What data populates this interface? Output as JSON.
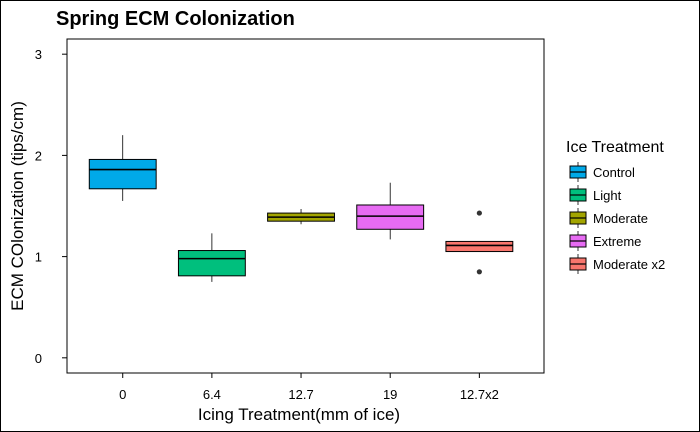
{
  "chart_data": {
    "type": "box",
    "title": "Spring ECM Colonization",
    "xlabel": "Icing Treatment(mm of ice)",
    "ylabel": "ECM COlonization (tips/cm)",
    "categories": [
      "0",
      "6.4",
      "12.7",
      "19",
      "12.7x2"
    ],
    "ylim": [
      -0.15,
      3.15
    ],
    "yticks": [
      0,
      1,
      2,
      3
    ],
    "grid": false,
    "legend": {
      "title": "Ice Treatment",
      "placement": "right",
      "entries": [
        {
          "label": "Control",
          "color": "#00A9E8"
        },
        {
          "label": "Light",
          "color": "#00BF7D"
        },
        {
          "label": "Moderate",
          "color": "#A3A500"
        },
        {
          "label": "Extreme",
          "color": "#E76BF3"
        },
        {
          "label": "Moderate x2",
          "color": "#F8766D"
        }
      ]
    },
    "series": [
      {
        "category": "0",
        "min": 1.55,
        "q1": 1.67,
        "median": 1.86,
        "q3": 1.96,
        "max": 2.2,
        "outliers": []
      },
      {
        "category": "6.4",
        "min": 0.75,
        "q1": 0.81,
        "median": 0.98,
        "q3": 1.06,
        "max": 1.23,
        "outliers": []
      },
      {
        "category": "12.7",
        "min": 1.32,
        "q1": 1.35,
        "median": 1.39,
        "q3": 1.43,
        "max": 1.47,
        "outliers": []
      },
      {
        "category": "19",
        "min": 1.17,
        "q1": 1.27,
        "median": 1.4,
        "q3": 1.51,
        "max": 1.73,
        "outliers": []
      },
      {
        "category": "12.7x2",
        "min": 1.05,
        "q1": 1.05,
        "median": 1.11,
        "q3": 1.15,
        "max": 1.15,
        "outliers": [
          1.43,
          0.85
        ]
      }
    ]
  }
}
